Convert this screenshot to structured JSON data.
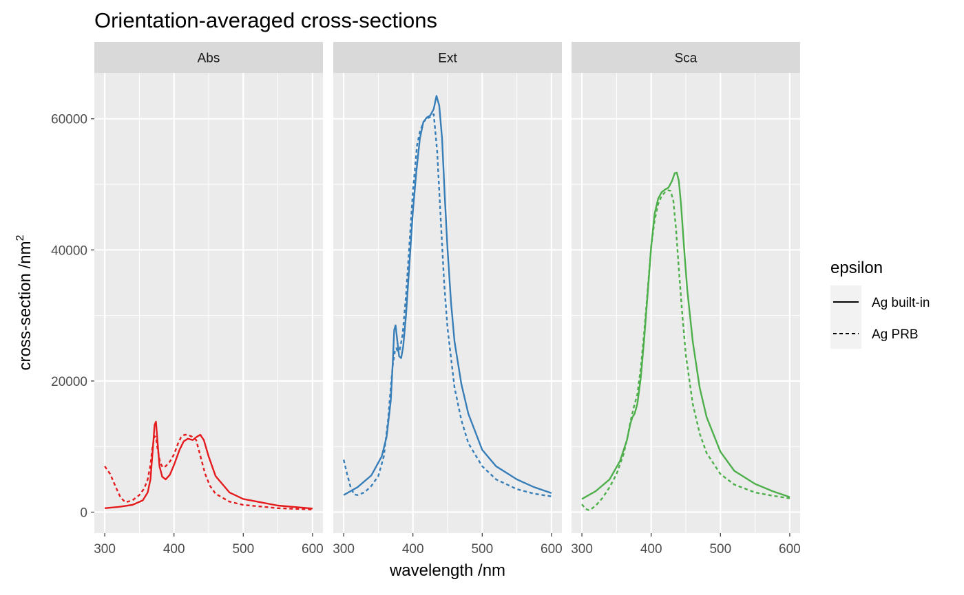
{
  "chart_data": {
    "type": "line",
    "title": "Orientation-averaged cross-sections",
    "xlabel": "wavelength /nm",
    "ylabel": "cross-section /nm",
    "ylabel_superscript": "2",
    "xlim": [
      285,
      615
    ],
    "ylim": [
      -3200,
      67000
    ],
    "x_ticks": [
      300,
      400,
      500,
      600
    ],
    "x_tick_labels": [
      "300",
      "400",
      "500",
      "600"
    ],
    "y_ticks": [
      0,
      20000,
      40000,
      60000
    ],
    "y_tick_labels": [
      "0",
      "20000",
      "40000",
      "60000"
    ],
    "grid": true,
    "legend": {
      "title": "epsilon",
      "position": "right",
      "entries": [
        {
          "label": "Ag built-in",
          "dash": "solid"
        },
        {
          "label": "Ag PRB",
          "dash": "dashed"
        }
      ]
    },
    "facets": [
      {
        "label": "Abs",
        "color": "#e41a1c",
        "series": [
          {
            "name": "Ag built-in",
            "dash": "solid",
            "x": [
              300,
              320,
              340,
              355,
              362,
              366,
              369,
              372,
              374,
              376,
              379,
              383,
              388,
              394,
              400,
              408,
              414,
              420,
              427,
              433,
              438,
              443,
              450,
              460,
              480,
              500,
              550,
              600
            ],
            "y": [
              600,
              800,
              1100,
              1800,
              3000,
              5000,
              9000,
              13300,
              13800,
              11000,
              7000,
              5400,
              5000,
              5700,
              7200,
              9500,
              10800,
              11200,
              11000,
              11500,
              11800,
              11000,
              8500,
              5500,
              3000,
              2000,
              1000,
              550
            ]
          },
          {
            "name": "Ag PRB",
            "dash": "dashed",
            "x": [
              300,
              308,
              316,
              323,
              330,
              340,
              350,
              357,
              362,
              366,
              369,
              372,
              374,
              376,
              380,
              384,
              388,
              394,
              400,
              406,
              410,
              415,
              420,
              426,
              432,
              438,
              445,
              452,
              460,
              480,
              500,
              550,
              600
            ],
            "y": [
              7000,
              5800,
              3800,
              2200,
              1500,
              1800,
              2600,
              3600,
              5000,
              7200,
              10000,
              11600,
              11400,
              9800,
              7500,
              6800,
              7000,
              7700,
              8800,
              10500,
              11400,
              11800,
              11800,
              11500,
              11000,
              8600,
              5800,
              4000,
              2800,
              1600,
              1100,
              600,
              400
            ]
          }
        ]
      },
      {
        "label": "Ext",
        "color": "#377eb8",
        "series": [
          {
            "name": "Ag built-in",
            "dash": "solid",
            "x": [
              300,
              320,
              340,
              355,
              362,
              368,
              371,
              373,
              375,
              377,
              380,
              383,
              386,
              390,
              395,
              400,
              405,
              410,
              415,
              420,
              425,
              430,
              434,
              438,
              442,
              446,
              450,
              455,
              460,
              470,
              480,
              500,
              520,
              550,
              575,
              600
            ],
            "y": [
              2600,
              3800,
              5600,
              8500,
              11500,
              17000,
              23000,
              27800,
              28500,
              26500,
              23800,
              23500,
              25300,
              30000,
              38000,
              46000,
              52000,
              57000,
              59500,
              60200,
              60500,
              61500,
              63500,
              62000,
              57000,
              48000,
              40000,
              32000,
              26000,
              19500,
              15000,
              9500,
              7000,
              5000,
              3800,
              2900
            ]
          },
          {
            "name": "Ag PRB",
            "dash": "dashed",
            "x": [
              300,
              305,
              310,
              315,
              320,
              325,
              330,
              340,
              350,
              358,
              364,
              368,
              371,
              374,
              376,
              378,
              381,
              385,
              390,
              395,
              400,
              406,
              410,
              415,
              420,
              425,
              430,
              435,
              440,
              445,
              450,
              460,
              470,
              480,
              500,
              520,
              550,
              575,
              600
            ],
            "y": [
              8000,
              5800,
              3800,
              2700,
              2600,
              2800,
              3000,
              4000,
              5500,
              8500,
              14000,
              19000,
              22500,
              24500,
              25000,
              24500,
              24800,
              27000,
              33000,
              41000,
              49000,
              56000,
              58000,
              59500,
              60000,
              60300,
              60700,
              55000,
              45000,
              35000,
              28000,
              19000,
              14000,
              10500,
              7000,
              5000,
              3500,
              2800,
              2400
            ]
          }
        ]
      },
      {
        "label": "Sca",
        "color": "#4daf4a",
        "series": [
          {
            "name": "Ag built-in",
            "dash": "solid",
            "x": [
              300,
              320,
              340,
              355,
              365,
              370,
              373,
              376,
              380,
              385,
              390,
              395,
              400,
              405,
              410,
              415,
              420,
              425,
              430,
              434,
              437,
              440,
              443,
              447,
              452,
              460,
              470,
              480,
              500,
              520,
              550,
              575,
              600
            ],
            "y": [
              2000,
              3200,
              5000,
              7800,
              11000,
              13500,
              14500,
              15000,
              16500,
              20500,
              26500,
              33500,
              40500,
              45500,
              47800,
              48800,
              49200,
              49500,
              50500,
              51700,
              51800,
              50500,
              47000,
              41000,
              34000,
              26000,
              19000,
              14500,
              9200,
              6300,
              4300,
              3200,
              2300
            ]
          },
          {
            "name": "Ag PRB",
            "dash": "dashed",
            "x": [
              300,
              305,
              310,
              315,
              320,
              330,
              340,
              350,
              360,
              366,
              370,
              375,
              380,
              385,
              390,
              395,
              400,
              405,
              410,
              415,
              420,
              425,
              428,
              432,
              436,
              440,
              445,
              450,
              460,
              470,
              480,
              500,
              520,
              550,
              575,
              600
            ],
            "y": [
              1200,
              500,
              300,
              600,
              1000,
              2200,
              3800,
              5800,
              8800,
              11500,
              13800,
              16000,
              18000,
              22000,
              27500,
              34000,
              40500,
              44500,
              47000,
              48200,
              48800,
              49100,
              49000,
              47500,
              43000,
              37000,
              30000,
              24000,
              16500,
              12000,
              9000,
              5800,
              4200,
              3000,
              2500,
              2100
            ]
          }
        ]
      }
    ]
  }
}
